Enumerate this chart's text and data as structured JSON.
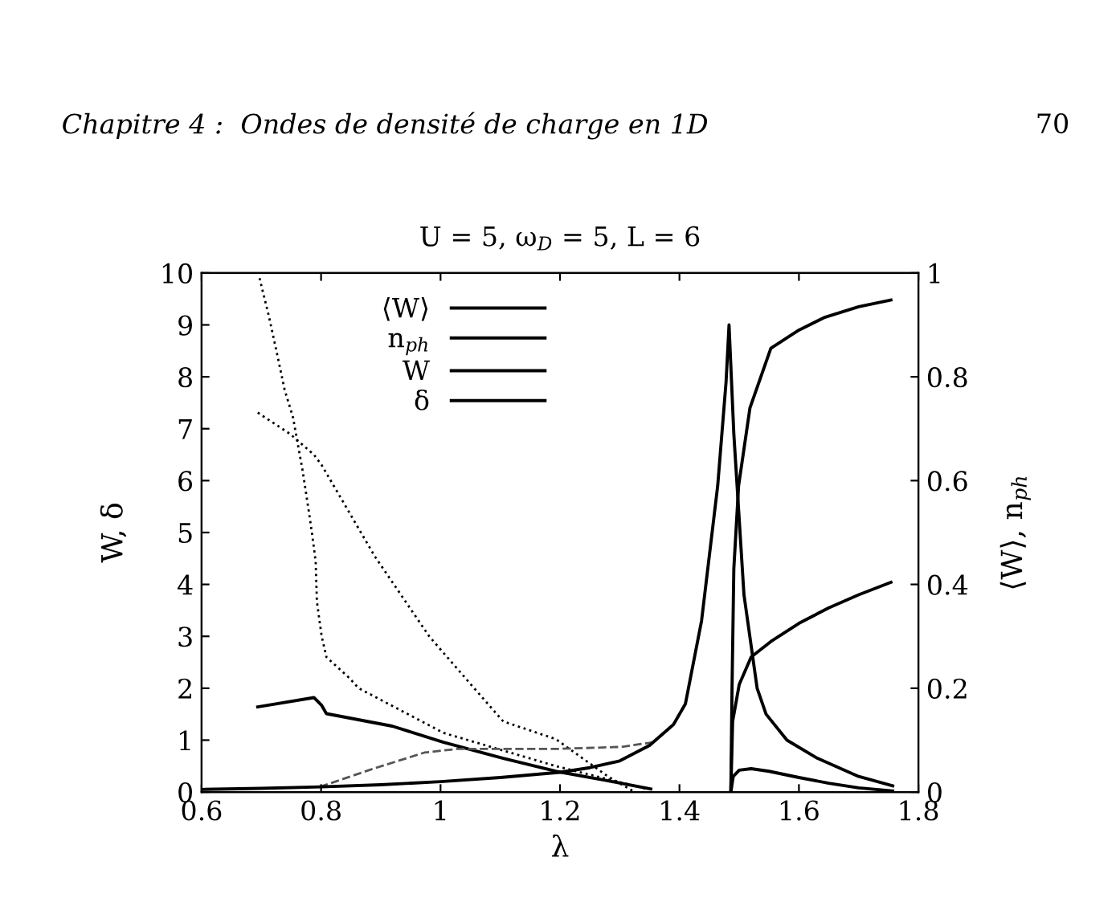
{
  "chart_data": {
    "type": "line",
    "title": "U = 5, ω$_{D}$ = 5, L = 6",
    "xlabel": "λ",
    "ylabel": "W, δ",
    "y2label": "⟨W⟩, n$_{ph}$",
    "annotations": [
      "Chapitre 4 :  Ondes de densité de charge en 1D",
      "70"
    ],
    "xlim": [
      0.6,
      1.8
    ],
    "xticks": [
      0.6,
      0.8,
      1,
      1.2,
      1.4,
      1.6,
      1.8
    ],
    "ylim": [
      0,
      10
    ],
    "yticks": [
      0,
      1,
      2,
      3,
      4,
      5,
      6,
      7,
      8,
      9,
      10
    ],
    "y2lim": [
      0,
      1
    ],
    "y2ticks": [
      0,
      0.2,
      0.4,
      0.6,
      0.8,
      1
    ],
    "grid": false,
    "legend": "top",
    "marker": "none",
    "series": [
      {
        "name": "⟨W⟩",
        "color": "#000000",
        "axis": "y2",
        "line_style": "solid",
        "x": [
          0.6,
          0.7,
          0.8,
          0.9,
          1.0,
          1.1,
          1.2,
          1.25,
          1.3,
          1.35,
          1.39,
          1.41,
          1.437,
          1.464,
          1.478,
          1.483,
          1.491,
          1.508,
          1.53,
          1.545,
          1.58,
          1.631,
          1.7,
          1.757
        ],
        "values": [
          0.005,
          0.007,
          0.01,
          0.014,
          0.02,
          0.028,
          0.038,
          0.047,
          0.06,
          0.09,
          0.13,
          0.17,
          0.33,
          0.59,
          0.79,
          0.9,
          0.69,
          0.38,
          0.2,
          0.15,
          0.1,
          0.065,
          0.03,
          0.012
        ]
      },
      {
        "name": "n$_{ph}$",
        "color": "#000000",
        "axis": "y2",
        "line_style": "solid",
        "x": [
          1.486,
          1.488,
          1.491,
          1.499,
          1.518,
          1.553,
          1.6,
          1.642,
          1.7,
          1.754
        ],
        "values": [
          0,
          0.2,
          0.43,
          0.59,
          0.74,
          0.855,
          0.89,
          0.914,
          0.935,
          0.948
        ]
      },
      {
        "name": "W",
        "color": "#000000",
        "axis": "y",
        "line_style": "solid",
        "x": [
          1.486,
          1.489,
          1.5,
          1.52,
          1.553,
          1.6,
          1.65,
          1.7,
          1.754
        ],
        "values": [
          0,
          1.36,
          2.07,
          2.6,
          2.9,
          3.25,
          3.55,
          3.8,
          4.04
        ]
      },
      {
        "name": "δ",
        "color": "#000000",
        "axis": "y",
        "line_style": "solid",
        "x": [
          1.486,
          1.49,
          1.5,
          1.52,
          1.55,
          1.6,
          1.65,
          1.7,
          1.757
        ],
        "values": [
          0,
          0.3,
          0.42,
          0.45,
          0.4,
          0.28,
          0.17,
          0.08,
          0.02
        ]
      },
      {
        "color": "#000000",
        "axis": "y",
        "line_style": "solid",
        "x": [
          0.694,
          0.788,
          0.801,
          0.809,
          0.919,
          1.005,
          1.105,
          1.193,
          1.279,
          1.352
        ],
        "values": [
          1.64,
          1.82,
          1.67,
          1.51,
          1.27,
          0.96,
          0.65,
          0.4,
          0.22,
          0.06
        ]
      },
      {
        "color": "#000000",
        "axis": "y",
        "line_style": "dotted",
        "x": [
          0.697,
          0.712,
          0.726,
          0.739,
          0.753,
          0.769,
          0.78,
          0.785,
          0.791,
          0.793,
          0.801,
          0.809,
          0.847,
          0.863,
          1.005,
          1.193,
          1.303,
          1.346
        ],
        "values": [
          9.9,
          9.2,
          8.46,
          7.75,
          7.22,
          6.2,
          5.37,
          4.97,
          4.44,
          3.67,
          3.0,
          2.6,
          2.2,
          2.0,
          1.14,
          0.5,
          0.18,
          0.06
        ]
      },
      {
        "color": "#000000",
        "axis": "y",
        "line_style": "dotted",
        "x": [
          0.694,
          0.748,
          0.788,
          0.801,
          0.89,
          0.981,
          1.051,
          1.105,
          1.193,
          1.279,
          1.325
        ],
        "values": [
          7.31,
          6.9,
          6.5,
          6.3,
          4.54,
          3.0,
          2.07,
          1.36,
          1.02,
          0.31,
          0
        ]
      },
      {
        "color": "#555555",
        "axis": "y",
        "line_style": "dashed",
        "x": [
          0.798,
          0.885,
          0.973,
          1.027,
          1.193,
          1.303,
          1.357
        ],
        "values": [
          0.1,
          0.44,
          0.76,
          0.83,
          0.83,
          0.87,
          0.96
        ]
      }
    ]
  }
}
